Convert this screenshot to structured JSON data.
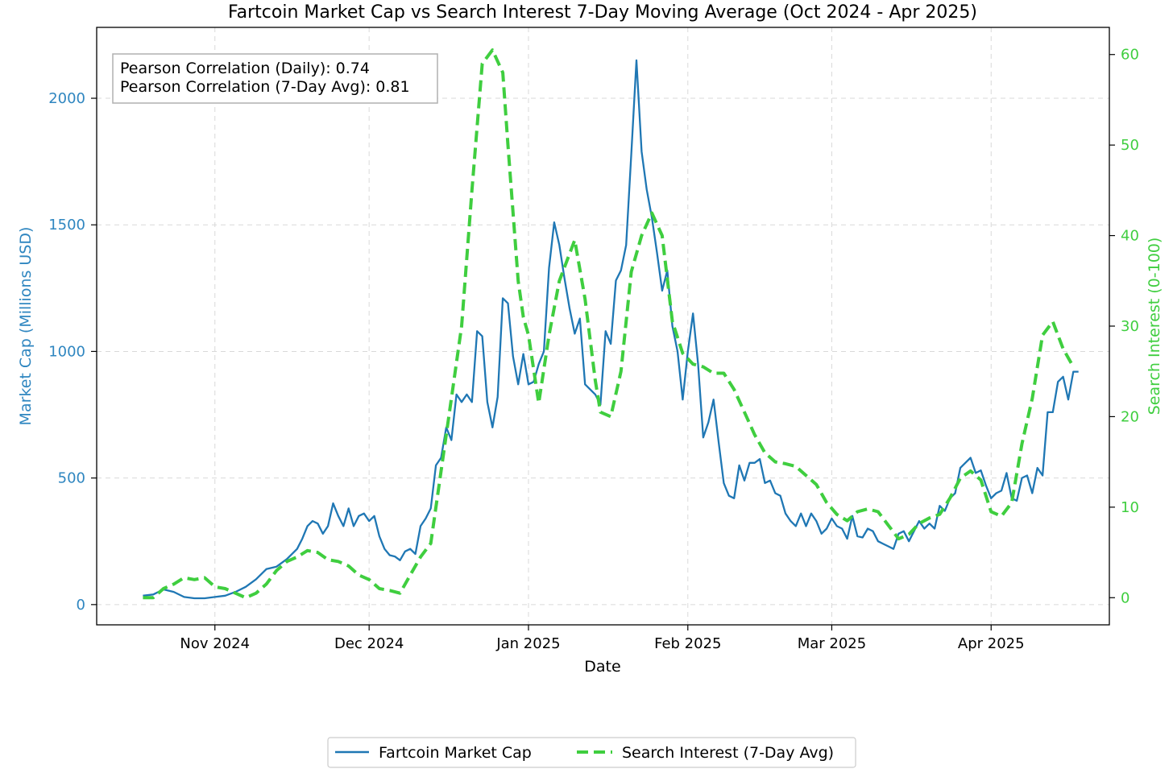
{
  "chart_data": {
    "type": "line",
    "title": "Fartcoin Market Cap vs Search Interest 7-Day Moving Average (Oct 2024 - Apr 2025)",
    "xlabel": "Date",
    "ylabel_left": "Market Cap (Millions USD)",
    "ylabel_right": "Search Interest (0-100)",
    "x_range": [
      "2024-10-09",
      "2025-04-24"
    ],
    "ylim_left": [
      -80,
      2280
    ],
    "ylim_right": [
      -3,
      63
    ],
    "x_ticks": [
      {
        "date": "2024-11-01",
        "label": "Nov 2024"
      },
      {
        "date": "2024-12-01",
        "label": "Dec 2024"
      },
      {
        "date": "2025-01-01",
        "label": "Jan 2025"
      },
      {
        "date": "2025-02-01",
        "label": "Feb 2025"
      },
      {
        "date": "2025-03-01",
        "label": "Mar 2025"
      },
      {
        "date": "2025-04-01",
        "label": "Apr 2025"
      }
    ],
    "y_ticks_left": [
      0,
      500,
      1000,
      1500,
      2000
    ],
    "y_ticks_right": [
      0,
      10,
      20,
      30,
      40,
      50,
      60
    ],
    "grid": true,
    "legend_placement": "bottom-center",
    "annotation": [
      "Pearson Correlation (Daily): 0.74",
      "Pearson Correlation (7-Day Avg): 0.81"
    ],
    "colors": {
      "market_cap": "#1f77b4",
      "search": "#3fce3f",
      "left_axis": "#2f86c0",
      "right_axis": "#3fce3f"
    },
    "series": [
      {
        "name": "Fartcoin Market Cap",
        "axis": "left",
        "style": "solid",
        "points": [
          [
            "2024-10-18",
            35
          ],
          [
            "2024-10-20",
            40
          ],
          [
            "2024-10-22",
            60
          ],
          [
            "2024-10-24",
            50
          ],
          [
            "2024-10-26",
            30
          ],
          [
            "2024-10-28",
            25
          ],
          [
            "2024-10-30",
            25
          ],
          [
            "2024-11-01",
            30
          ],
          [
            "2024-11-03",
            35
          ],
          [
            "2024-11-05",
            50
          ],
          [
            "2024-11-07",
            70
          ],
          [
            "2024-11-09",
            100
          ],
          [
            "2024-11-11",
            140
          ],
          [
            "2024-11-13",
            150
          ],
          [
            "2024-11-15",
            180
          ],
          [
            "2024-11-17",
            220
          ],
          [
            "2024-11-18",
            260
          ],
          [
            "2024-11-19",
            310
          ],
          [
            "2024-11-20",
            330
          ],
          [
            "2024-11-21",
            320
          ],
          [
            "2024-11-22",
            280
          ],
          [
            "2024-11-23",
            310
          ],
          [
            "2024-11-24",
            400
          ],
          [
            "2024-11-25",
            350
          ],
          [
            "2024-11-26",
            310
          ],
          [
            "2024-11-27",
            380
          ],
          [
            "2024-11-28",
            310
          ],
          [
            "2024-11-29",
            350
          ],
          [
            "2024-11-30",
            360
          ],
          [
            "2024-12-01",
            330
          ],
          [
            "2024-12-02",
            350
          ],
          [
            "2024-12-03",
            270
          ],
          [
            "2024-12-04",
            220
          ],
          [
            "2024-12-05",
            195
          ],
          [
            "2024-12-06",
            190
          ],
          [
            "2024-12-07",
            175
          ],
          [
            "2024-12-08",
            210
          ],
          [
            "2024-12-09",
            220
          ],
          [
            "2024-12-10",
            200
          ],
          [
            "2024-12-11",
            310
          ],
          [
            "2024-12-12",
            340
          ],
          [
            "2024-12-13",
            380
          ],
          [
            "2024-12-14",
            550
          ],
          [
            "2024-12-15",
            580
          ],
          [
            "2024-12-16",
            700
          ],
          [
            "2024-12-17",
            650
          ],
          [
            "2024-12-18",
            830
          ],
          [
            "2024-12-19",
            800
          ],
          [
            "2024-12-20",
            830
          ],
          [
            "2024-12-21",
            800
          ],
          [
            "2024-12-22",
            1080
          ],
          [
            "2024-12-23",
            1060
          ],
          [
            "2024-12-24",
            800
          ],
          [
            "2024-12-25",
            700
          ],
          [
            "2024-12-26",
            820
          ],
          [
            "2024-12-27",
            1210
          ],
          [
            "2024-12-28",
            1190
          ],
          [
            "2024-12-29",
            980
          ],
          [
            "2024-12-30",
            870
          ],
          [
            "2024-12-31",
            990
          ],
          [
            "2025-01-01",
            870
          ],
          [
            "2025-01-02",
            880
          ],
          [
            "2025-01-03",
            950
          ],
          [
            "2025-01-04",
            1000
          ],
          [
            "2025-01-05",
            1330
          ],
          [
            "2025-01-06",
            1510
          ],
          [
            "2025-01-07",
            1420
          ],
          [
            "2025-01-08",
            1290
          ],
          [
            "2025-01-09",
            1170
          ],
          [
            "2025-01-10",
            1070
          ],
          [
            "2025-01-11",
            1130
          ],
          [
            "2025-01-12",
            870
          ],
          [
            "2025-01-13",
            850
          ],
          [
            "2025-01-14",
            830
          ],
          [
            "2025-01-15",
            790
          ],
          [
            "2025-01-16",
            1080
          ],
          [
            "2025-01-17",
            1030
          ],
          [
            "2025-01-18",
            1280
          ],
          [
            "2025-01-19",
            1320
          ],
          [
            "2025-01-20",
            1420
          ],
          [
            "2025-01-21",
            1780
          ],
          [
            "2025-01-22",
            2150
          ],
          [
            "2025-01-23",
            1790
          ],
          [
            "2025-01-24",
            1640
          ],
          [
            "2025-01-25",
            1530
          ],
          [
            "2025-01-26",
            1390
          ],
          [
            "2025-01-27",
            1240
          ],
          [
            "2025-01-28",
            1320
          ],
          [
            "2025-01-29",
            1100
          ],
          [
            "2025-01-30",
            1000
          ],
          [
            "2025-01-31",
            810
          ],
          [
            "2025-02-01",
            1000
          ],
          [
            "2025-02-02",
            1150
          ],
          [
            "2025-02-03",
            950
          ],
          [
            "2025-02-04",
            660
          ],
          [
            "2025-02-05",
            720
          ],
          [
            "2025-02-06",
            810
          ],
          [
            "2025-02-07",
            640
          ],
          [
            "2025-02-08",
            480
          ],
          [
            "2025-02-09",
            430
          ],
          [
            "2025-02-10",
            420
          ],
          [
            "2025-02-11",
            550
          ],
          [
            "2025-02-12",
            490
          ],
          [
            "2025-02-13",
            560
          ],
          [
            "2025-02-14",
            560
          ],
          [
            "2025-02-15",
            575
          ],
          [
            "2025-02-16",
            480
          ],
          [
            "2025-02-17",
            490
          ],
          [
            "2025-02-18",
            440
          ],
          [
            "2025-02-19",
            430
          ],
          [
            "2025-02-20",
            360
          ],
          [
            "2025-02-21",
            330
          ],
          [
            "2025-02-22",
            310
          ],
          [
            "2025-02-23",
            360
          ],
          [
            "2025-02-24",
            310
          ],
          [
            "2025-02-25",
            360
          ],
          [
            "2025-02-26",
            330
          ],
          [
            "2025-02-27",
            280
          ],
          [
            "2025-02-28",
            300
          ],
          [
            "2025-03-01",
            340
          ],
          [
            "2025-03-02",
            310
          ],
          [
            "2025-03-03",
            300
          ],
          [
            "2025-03-04",
            260
          ],
          [
            "2025-03-05",
            350
          ],
          [
            "2025-03-06",
            270
          ],
          [
            "2025-03-07",
            265
          ],
          [
            "2025-03-08",
            300
          ],
          [
            "2025-03-09",
            290
          ],
          [
            "2025-03-10",
            250
          ],
          [
            "2025-03-11",
            240
          ],
          [
            "2025-03-12",
            230
          ],
          [
            "2025-03-13",
            220
          ],
          [
            "2025-03-14",
            280
          ],
          [
            "2025-03-15",
            290
          ],
          [
            "2025-03-16",
            250
          ],
          [
            "2025-03-17",
            290
          ],
          [
            "2025-03-18",
            330
          ],
          [
            "2025-03-19",
            300
          ],
          [
            "2025-03-20",
            320
          ],
          [
            "2025-03-21",
            300
          ],
          [
            "2025-03-22",
            390
          ],
          [
            "2025-03-23",
            370
          ],
          [
            "2025-03-24",
            420
          ],
          [
            "2025-03-25",
            440
          ],
          [
            "2025-03-26",
            540
          ],
          [
            "2025-03-27",
            560
          ],
          [
            "2025-03-28",
            580
          ],
          [
            "2025-03-29",
            520
          ],
          [
            "2025-03-30",
            530
          ],
          [
            "2025-03-31",
            470
          ],
          [
            "2025-04-01",
            420
          ],
          [
            "2025-04-02",
            440
          ],
          [
            "2025-04-03",
            450
          ],
          [
            "2025-04-04",
            520
          ],
          [
            "2025-04-05",
            420
          ],
          [
            "2025-04-06",
            410
          ],
          [
            "2025-04-07",
            500
          ],
          [
            "2025-04-08",
            510
          ],
          [
            "2025-04-09",
            440
          ],
          [
            "2025-04-10",
            540
          ],
          [
            "2025-04-11",
            510
          ],
          [
            "2025-04-12",
            760
          ],
          [
            "2025-04-13",
            760
          ],
          [
            "2025-04-14",
            880
          ],
          [
            "2025-04-15",
            900
          ],
          [
            "2025-04-16",
            810
          ],
          [
            "2025-04-17",
            920
          ],
          [
            "2025-04-18",
            920
          ]
        ]
      },
      {
        "name": "Search Interest (7-Day Avg)",
        "axis": "right",
        "style": "dashed",
        "points": [
          [
            "2024-10-18",
            0
          ],
          [
            "2024-10-20",
            0
          ],
          [
            "2024-10-22",
            1
          ],
          [
            "2024-10-24",
            1.5
          ],
          [
            "2024-10-26",
            2.2
          ],
          [
            "2024-10-28",
            2
          ],
          [
            "2024-10-30",
            2.2
          ],
          [
            "2024-11-01",
            1.2
          ],
          [
            "2024-11-03",
            1
          ],
          [
            "2024-11-05",
            0.5
          ],
          [
            "2024-11-07",
            0
          ],
          [
            "2024-11-09",
            0.5
          ],
          [
            "2024-11-11",
            1.5
          ],
          [
            "2024-11-13",
            3
          ],
          [
            "2024-11-15",
            4
          ],
          [
            "2024-11-17",
            4.5
          ],
          [
            "2024-11-19",
            5.2
          ],
          [
            "2024-11-21",
            5
          ],
          [
            "2024-11-23",
            4.2
          ],
          [
            "2024-11-25",
            4
          ],
          [
            "2024-11-27",
            3.5
          ],
          [
            "2024-11-29",
            2.5
          ],
          [
            "2024-12-01",
            2
          ],
          [
            "2024-12-03",
            1
          ],
          [
            "2024-12-05",
            0.8
          ],
          [
            "2024-12-07",
            0.5
          ],
          [
            "2024-12-09",
            2.5
          ],
          [
            "2024-12-11",
            4.5
          ],
          [
            "2024-12-13",
            6
          ],
          [
            "2024-12-15",
            14
          ],
          [
            "2024-12-17",
            22
          ],
          [
            "2024-12-19",
            30
          ],
          [
            "2024-12-21",
            45
          ],
          [
            "2024-12-23",
            59
          ],
          [
            "2024-12-25",
            60.5
          ],
          [
            "2024-12-27",
            58
          ],
          [
            "2024-12-28",
            50
          ],
          [
            "2024-12-30",
            35
          ],
          [
            "2024-12-31",
            31
          ],
          [
            "2025-01-01",
            29
          ],
          [
            "2025-01-03",
            21.5
          ],
          [
            "2025-01-05",
            29
          ],
          [
            "2025-01-07",
            35
          ],
          [
            "2025-01-09",
            38
          ],
          [
            "2025-01-10",
            39.5
          ],
          [
            "2025-01-12",
            33
          ],
          [
            "2025-01-14",
            24
          ],
          [
            "2025-01-15",
            20.5
          ],
          [
            "2025-01-17",
            20
          ],
          [
            "2025-01-19",
            25
          ],
          [
            "2025-01-21",
            36
          ],
          [
            "2025-01-23",
            40
          ],
          [
            "2025-01-25",
            42.5
          ],
          [
            "2025-01-27",
            40
          ],
          [
            "2025-01-29",
            30.5
          ],
          [
            "2025-01-31",
            27
          ],
          [
            "2025-02-02",
            25.8
          ],
          [
            "2025-02-04",
            25.5
          ],
          [
            "2025-02-06",
            24.8
          ],
          [
            "2025-02-08",
            24.8
          ],
          [
            "2025-02-10",
            23
          ],
          [
            "2025-02-12",
            20.5
          ],
          [
            "2025-02-14",
            18
          ],
          [
            "2025-02-16",
            16
          ],
          [
            "2025-02-18",
            15
          ],
          [
            "2025-02-20",
            14.8
          ],
          [
            "2025-02-22",
            14.5
          ],
          [
            "2025-02-24",
            13.5
          ],
          [
            "2025-02-26",
            12.5
          ],
          [
            "2025-02-28",
            10.5
          ],
          [
            "2025-03-02",
            9.2
          ],
          [
            "2025-03-04",
            8.5
          ],
          [
            "2025-03-06",
            9.5
          ],
          [
            "2025-03-08",
            9.8
          ],
          [
            "2025-03-10",
            9.5
          ],
          [
            "2025-03-12",
            8
          ],
          [
            "2025-03-14",
            6.5
          ],
          [
            "2025-03-16",
            7
          ],
          [
            "2025-03-18",
            8.2
          ],
          [
            "2025-03-20",
            8.8
          ],
          [
            "2025-03-22",
            9.2
          ],
          [
            "2025-03-24",
            11
          ],
          [
            "2025-03-26",
            13.2
          ],
          [
            "2025-03-28",
            14
          ],
          [
            "2025-03-30",
            13
          ],
          [
            "2025-04-01",
            9.5
          ],
          [
            "2025-04-03",
            9
          ],
          [
            "2025-04-05",
            10.5
          ],
          [
            "2025-04-07",
            17
          ],
          [
            "2025-04-09",
            22
          ],
          [
            "2025-04-11",
            29
          ],
          [
            "2025-04-13",
            30.5
          ],
          [
            "2025-04-15",
            27.5
          ],
          [
            "2025-04-17",
            25.5
          ]
        ]
      }
    ]
  }
}
